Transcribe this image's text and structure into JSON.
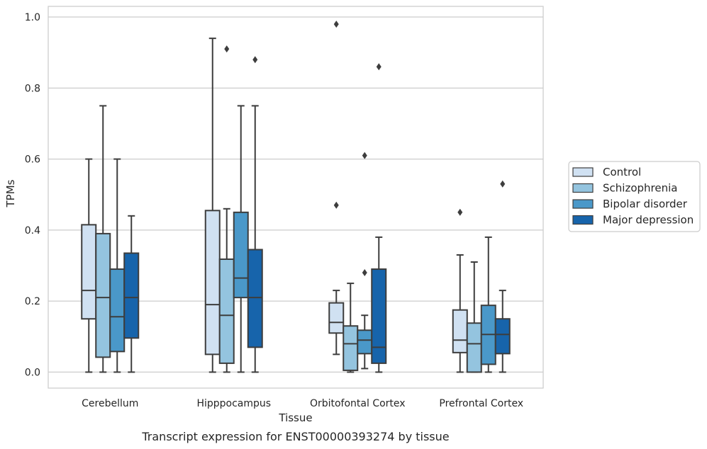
{
  "caption": "Transcript expression for ENST00000393274 by tissue",
  "chart_data": {
    "type": "box",
    "title": "",
    "xlabel": "Tissue",
    "ylabel": "TPMs",
    "ylim": [
      -0.045,
      1.03
    ],
    "yticks": [
      0.0,
      0.2,
      0.4,
      0.6,
      0.8,
      1.0
    ],
    "ytick_labels": [
      "0.0",
      "0.2",
      "0.4",
      "0.6",
      "0.8",
      "1.0"
    ],
    "grid": true,
    "legend_position": "outside-right",
    "categories": [
      "Cerebellum",
      "Hipppocampus",
      "Orbitofontal Cortex",
      "Prefrontal Cortex"
    ],
    "series": [
      {
        "name": "Control",
        "color": "#d0e1f2",
        "boxes": [
          {
            "low": 0.0,
            "q1": 0.15,
            "median": 0.23,
            "q3": 0.415,
            "high": 0.6,
            "outliers": []
          },
          {
            "low": 0.0,
            "q1": 0.05,
            "median": 0.19,
            "q3": 0.455,
            "high": 0.94,
            "outliers": []
          },
          {
            "low": 0.05,
            "q1": 0.11,
            "median": 0.14,
            "q3": 0.195,
            "high": 0.23,
            "outliers": [
              0.47,
              0.98
            ]
          },
          {
            "low": 0.0,
            "q1": 0.055,
            "median": 0.09,
            "q3": 0.175,
            "high": 0.33,
            "outliers": [
              0.45
            ]
          }
        ]
      },
      {
        "name": "Schizophrenia",
        "color": "#94c4df",
        "boxes": [
          {
            "low": 0.0,
            "q1": 0.042,
            "median": 0.21,
            "q3": 0.39,
            "high": 0.75,
            "outliers": []
          },
          {
            "low": 0.0,
            "q1": 0.025,
            "median": 0.16,
            "q3": 0.318,
            "high": 0.46,
            "outliers": [
              0.91
            ]
          },
          {
            "low": 0.0,
            "q1": 0.005,
            "median": 0.08,
            "q3": 0.13,
            "high": 0.25,
            "outliers": []
          },
          {
            "low": 0.0,
            "q1": 0.0,
            "median": 0.08,
            "q3": 0.138,
            "high": 0.31,
            "outliers": []
          }
        ]
      },
      {
        "name": "Bipolar disorder",
        "color": "#4a98c9",
        "boxes": [
          {
            "low": 0.0,
            "q1": 0.058,
            "median": 0.156,
            "q3": 0.29,
            "high": 0.6,
            "outliers": []
          },
          {
            "low": 0.0,
            "q1": 0.21,
            "median": 0.265,
            "q3": 0.45,
            "high": 0.75,
            "outliers": []
          },
          {
            "low": 0.01,
            "q1": 0.052,
            "median": 0.09,
            "q3": 0.118,
            "high": 0.16,
            "outliers": [
              0.28,
              0.61
            ]
          },
          {
            "low": 0.0,
            "q1": 0.022,
            "median": 0.106,
            "q3": 0.188,
            "high": 0.38,
            "outliers": []
          }
        ]
      },
      {
        "name": "Major depression",
        "color": "#1764ab",
        "boxes": [
          {
            "low": 0.0,
            "q1": 0.096,
            "median": 0.21,
            "q3": 0.335,
            "high": 0.44,
            "outliers": []
          },
          {
            "low": 0.0,
            "q1": 0.07,
            "median": 0.21,
            "q3": 0.345,
            "high": 0.75,
            "outliers": [
              0.88
            ]
          },
          {
            "low": 0.0,
            "q1": 0.025,
            "median": 0.07,
            "q3": 0.29,
            "high": 0.38,
            "outliers": [
              0.86
            ]
          },
          {
            "low": 0.0,
            "q1": 0.052,
            "median": 0.106,
            "q3": 0.15,
            "high": 0.23,
            "outliers": [
              0.53
            ]
          }
        ]
      }
    ]
  }
}
